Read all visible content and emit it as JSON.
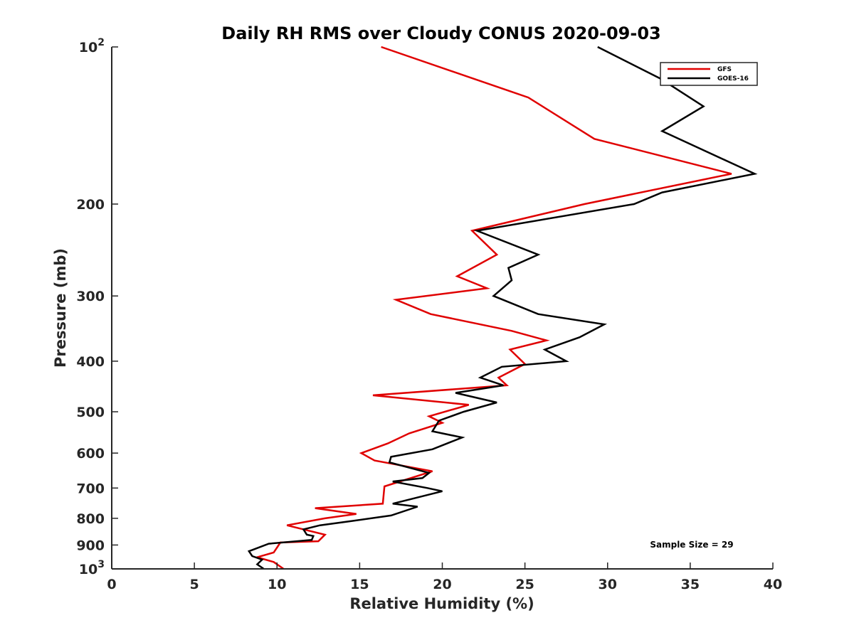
{
  "chart_data": {
    "type": "line",
    "title": "Daily RH RMS over Cloudy CONUS 2020-09-03",
    "xlabel": "Relative Humidity (%)",
    "ylabel": "Pressure (mb)",
    "xlim": [
      0,
      40
    ],
    "ylim": [
      100,
      1000
    ],
    "yscale": "log",
    "y_reversed": true,
    "x_ticks": [
      "0",
      "5",
      "10",
      "15",
      "20",
      "25",
      "30",
      "35",
      "40"
    ],
    "y_ticks": [
      {
        "value": 100,
        "base": "10",
        "exp": "2"
      },
      {
        "value": 200,
        "label": "200"
      },
      {
        "value": 300,
        "label": "300"
      },
      {
        "value": 400,
        "label": "400"
      },
      {
        "value": 500,
        "label": "500"
      },
      {
        "value": 600,
        "label": "600"
      },
      {
        "value": 700,
        "label": "700"
      },
      {
        "value": 800,
        "label": "800"
      },
      {
        "value": 900,
        "label": "900"
      },
      {
        "value": 1000,
        "base": "10",
        "exp": "3"
      }
    ],
    "legend_position": "top-right",
    "annotation": "Sample Size = 29",
    "series": [
      {
        "name": "GFS",
        "color": "#e00000",
        "points": [
          [
            16.3,
            100
          ],
          [
            25.2,
            125
          ],
          [
            29.2,
            150
          ],
          [
            37.5,
            175
          ],
          [
            28.6,
            200
          ],
          [
            21.8,
            225
          ],
          [
            23.3,
            250
          ],
          [
            20.9,
            275
          ],
          [
            22.7,
            290
          ],
          [
            17.2,
            305
          ],
          [
            19.3,
            325
          ],
          [
            24.2,
            350
          ],
          [
            26.3,
            365
          ],
          [
            24.1,
            380
          ],
          [
            25.0,
            405
          ],
          [
            23.4,
            430
          ],
          [
            23.9,
            445
          ],
          [
            15.8,
            465
          ],
          [
            21.6,
            485
          ],
          [
            19.2,
            510
          ],
          [
            20.0,
            525
          ],
          [
            18.0,
            550
          ],
          [
            16.7,
            575
          ],
          [
            15.1,
            600
          ],
          [
            15.9,
            620
          ],
          [
            19.4,
            650
          ],
          [
            16.5,
            695
          ],
          [
            16.4,
            750
          ],
          [
            12.3,
            765
          ],
          [
            14.8,
            785
          ],
          [
            12.9,
            800
          ],
          [
            10.6,
            825
          ],
          [
            12.9,
            860
          ],
          [
            12.5,
            885
          ],
          [
            10.2,
            890
          ],
          [
            10.0,
            910
          ],
          [
            9.8,
            930
          ],
          [
            8.8,
            950
          ],
          [
            9.8,
            970
          ],
          [
            10.4,
            1000
          ]
        ]
      },
      {
        "name": "GOES-16",
        "color": "#000000",
        "points": [
          [
            29.4,
            100
          ],
          [
            33.2,
            115
          ],
          [
            35.8,
            130
          ],
          [
            33.3,
            145
          ],
          [
            38.9,
            175
          ],
          [
            33.3,
            190
          ],
          [
            31.6,
            200
          ],
          [
            22.1,
            225
          ],
          [
            25.8,
            250
          ],
          [
            24.0,
            265
          ],
          [
            24.2,
            280
          ],
          [
            23.1,
            300
          ],
          [
            25.8,
            325
          ],
          [
            29.8,
            340
          ],
          [
            28.3,
            360
          ],
          [
            26.2,
            380
          ],
          [
            27.5,
            400
          ],
          [
            23.6,
            410
          ],
          [
            22.3,
            430
          ],
          [
            23.7,
            445
          ],
          [
            20.8,
            460
          ],
          [
            23.3,
            480
          ],
          [
            21.3,
            500
          ],
          [
            19.8,
            520
          ],
          [
            19.4,
            545
          ],
          [
            21.2,
            560
          ],
          [
            19.4,
            590
          ],
          [
            16.9,
            610
          ],
          [
            16.8,
            625
          ],
          [
            19.2,
            655
          ],
          [
            18.8,
            670
          ],
          [
            17.0,
            680
          ],
          [
            19.1,
            700
          ],
          [
            20.0,
            710
          ],
          [
            17.0,
            750
          ],
          [
            18.5,
            760
          ],
          [
            16.9,
            790
          ],
          [
            14.5,
            810
          ],
          [
            12.6,
            825
          ],
          [
            11.6,
            840
          ],
          [
            11.8,
            860
          ],
          [
            12.2,
            865
          ],
          [
            12.1,
            880
          ],
          [
            9.5,
            895
          ],
          [
            8.5,
            920
          ],
          [
            8.3,
            925
          ],
          [
            8.5,
            945
          ],
          [
            9.1,
            960
          ],
          [
            8.8,
            980
          ],
          [
            9.2,
            1000
          ]
        ]
      }
    ]
  }
}
